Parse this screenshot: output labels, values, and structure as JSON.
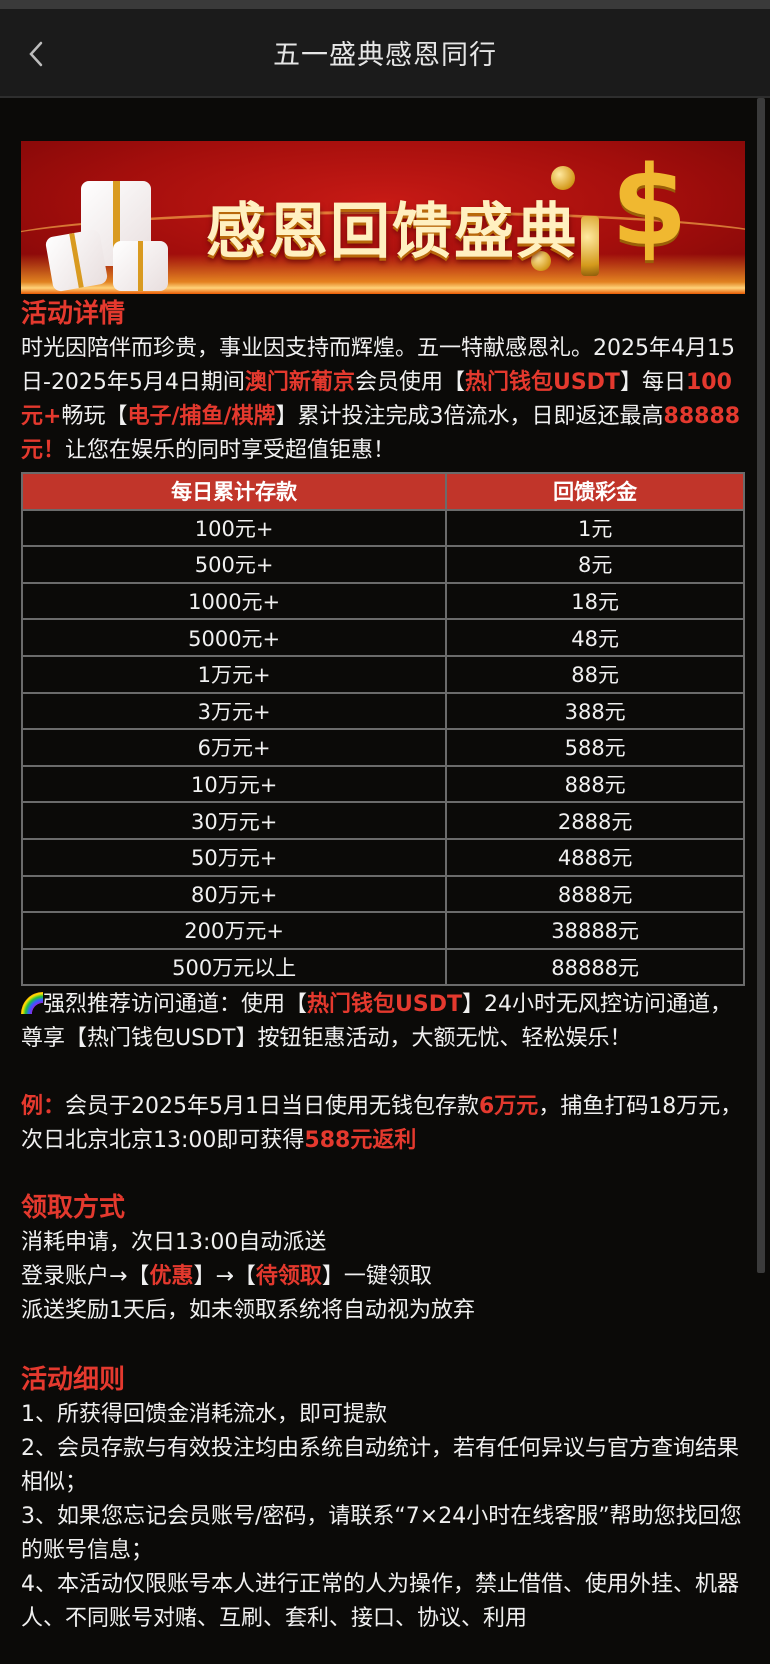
{
  "header": {
    "title": "五一盛典感恩同行",
    "back_icon": "chevron-left-icon"
  },
  "banner": {
    "text": "感恩回馈盛典"
  },
  "details": {
    "heading": "活动详情",
    "p1": "时光因陪伴而珍贵，事业因支持而辉煌。五一特献感恩礼。2025年4月15日-2025年5月4日期间",
    "brand": "澳门新葡京",
    "p2": "会员使用【",
    "wallet": "热门钱包USDT",
    "p3": "】每日",
    "amount": "100元+",
    "p4": "畅玩【",
    "games": "电子/捕鱼/棋牌",
    "p5": "】累计投注完成3倍流水，日即返还最高",
    "max": "88888元！",
    "p6": "让您在娱乐的同时享受超值钜惠！"
  },
  "table": {
    "headers": [
      "每日累计存款",
      "回馈彩金"
    ],
    "rows": [
      [
        "100元+",
        "1元"
      ],
      [
        "500元+",
        "8元"
      ],
      [
        "1000元+",
        "18元"
      ],
      [
        "5000元+",
        "48元"
      ],
      [
        "1万元+",
        "88元"
      ],
      [
        "3万元+",
        "388元"
      ],
      [
        "6万元+",
        "588元"
      ],
      [
        "10万元+",
        "888元"
      ],
      [
        "30万元+",
        "2888元"
      ],
      [
        "50万元+",
        "4888元"
      ],
      [
        "80万元+",
        "8888元"
      ],
      [
        "200万元+",
        "38888元"
      ],
      [
        "500万元以上",
        "88888元"
      ]
    ]
  },
  "channel": {
    "icon": "rainbow-icon",
    "t1": "强烈推荐访问通道：使用【",
    "wallet": "热门钱包USDT",
    "t2": "】24小时无风控访问通道，尊享【热门钱包USDT】按钮钜惠活动，大额无忧、轻松娱乐！"
  },
  "example": {
    "label": "例：",
    "t1": "会员于2025年5月1日当日使用无钱包存款",
    "amount": "6万元",
    "t2": "，捕鱼打码18万元，次日北京北京13:00即可获得",
    "reward": "588元返利"
  },
  "claim": {
    "heading": "领取方式",
    "line1": "消耗申请，次日13:00自动派送",
    "l2a": "登录账户→【",
    "l2b": "优惠",
    "l2c": "】→【",
    "l2d": "待领取",
    "l2e": "】一键领取",
    "line3": "派送奖励1天后，如未领取系统将自动视为放弃"
  },
  "rules": {
    "heading": "活动细则",
    "items": [
      "1、所获得回馈金消耗流水，即可提款",
      "2、会员存款与有效投注均由系统自动统计，若有任何异议与官方查询结果相似；",
      "3、如果您忘记会员账号/密码，请联系“7×24小时在线客服”帮助您找回您的账号信息；",
      "4、本活动仅限账号本人进行正常的人为操作，禁止借借、使用外挂、机器人、不同账号对赌、互刷、套利、接口、协议、利用"
    ]
  },
  "colors": {
    "accent": "#e4392e",
    "table_header": "#c1352a",
    "background": "#0b0a08",
    "nav": "#1b1b1b"
  }
}
